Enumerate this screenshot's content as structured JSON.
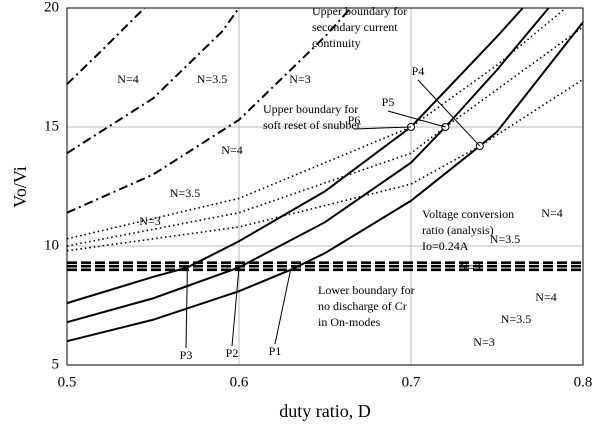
{
  "chart_data": {
    "type": "line",
    "xlabel": "duty ratio, D",
    "ylabel": "Vo/Vi",
    "xlim": [
      0.5,
      0.8
    ],
    "xticks": [
      0.5,
      0.6,
      0.7,
      0.8
    ],
    "ylim": [
      5,
      20
    ],
    "yticks": [
      5,
      10,
      15,
      20
    ],
    "grid": true,
    "series": [
      {
        "name": "N=3",
        "color": "#000000",
        "style": "solid",
        "x": [
          0.5,
          0.55,
          0.6,
          0.63,
          0.65,
          0.7,
          0.74,
          0.75,
          0.8
        ],
        "values": [
          6.0,
          6.9,
          8.1,
          9.0,
          9.7,
          11.9,
          14.2,
          14.8,
          19.4
        ]
      },
      {
        "name": "N=3.5",
        "color": "#000000",
        "style": "solid",
        "x": [
          0.5,
          0.55,
          0.6,
          0.65,
          0.7,
          0.72,
          0.75,
          0.78
        ],
        "values": [
          6.8,
          7.8,
          9.1,
          11.0,
          13.5,
          15.0,
          17.4,
          20
        ]
      },
      {
        "name": "N=4",
        "color": "#000000",
        "style": "solid",
        "x": [
          0.5,
          0.55,
          0.57,
          0.6,
          0.65,
          0.7,
          0.75,
          0.765
        ],
        "values": [
          7.6,
          8.7,
          9.1,
          10.2,
          12.3,
          15.0,
          18.8,
          20
        ]
      },
      {
        "name": "N=3",
        "color": "#000000",
        "style": "dotted",
        "x": [
          0.5,
          0.6,
          0.7,
          0.74,
          0.8
        ],
        "values": [
          9.8,
          10.8,
          12.6,
          14.2,
          17.0
        ]
      },
      {
        "name": "N=3.5",
        "color": "#000000",
        "style": "dotted",
        "x": [
          0.5,
          0.6,
          0.7,
          0.72,
          0.8
        ],
        "values": [
          10.0,
          11.4,
          13.9,
          15.0,
          19.2
        ]
      },
      {
        "name": "N=4",
        "color": "#000000",
        "style": "dotted",
        "x": [
          0.5,
          0.6,
          0.7,
          0.75,
          0.79
        ],
        "values": [
          10.3,
          12.0,
          15.0,
          17.6,
          20
        ]
      },
      {
        "name": "N=3",
        "color": "#000000",
        "style": "dashdot",
        "x": [
          0.5,
          0.55,
          0.6,
          0.65,
          0.665
        ],
        "values": [
          11.4,
          13.0,
          15.3,
          18.8,
          20
        ]
      },
      {
        "name": "N=3.5",
        "color": "#000000",
        "style": "dashdot",
        "x": [
          0.5,
          0.55,
          0.59,
          0.6
        ],
        "values": [
          13.9,
          16.2,
          19.0,
          20
        ]
      },
      {
        "name": "N=4",
        "color": "#000000",
        "style": "dashdot",
        "x": [
          0.5,
          0.52,
          0.545
        ],
        "values": [
          16.8,
          18.2,
          20
        ]
      },
      {
        "name": "N=3",
        "color": "#000000",
        "style": "dashed",
        "x": [
          0.5,
          0.8
        ],
        "values": [
          9.0,
          9.0
        ]
      },
      {
        "name": "N=3.5",
        "color": "#000000",
        "style": "dashed",
        "x": [
          0.5,
          0.8
        ],
        "values": [
          9.15,
          9.15
        ]
      },
      {
        "name": "N=4",
        "color": "#000000",
        "style": "dashed",
        "x": [
          0.5,
          0.8
        ],
        "values": [
          9.3,
          9.3
        ]
      }
    ],
    "annotations": [
      [
        "Upper boundary for",
        "secondary current",
        "continuity"
      ],
      [
        "Upper boundary for",
        "soft reset of snubber"
      ],
      [
        "Voltage conversion",
        "ratio (analysis)",
        "Io=0.24A"
      ],
      [
        "Lower boundary for",
        "no discharge of Cr",
        "in On-modes"
      ]
    ],
    "points": [
      "P1",
      "P2",
      "P3",
      "P4",
      "P5",
      "P6"
    ]
  }
}
